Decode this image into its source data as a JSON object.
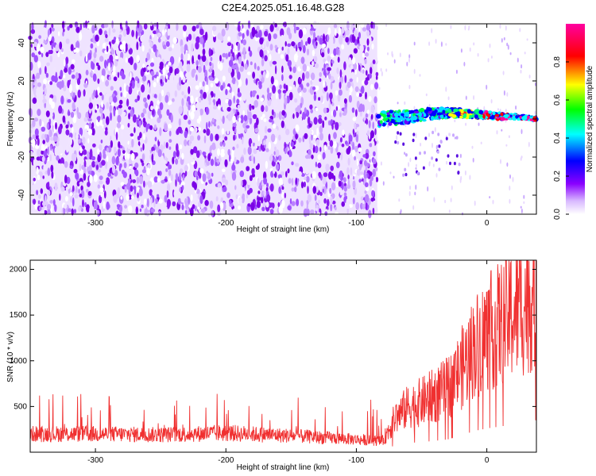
{
  "figure_title": "C2E4.2025.051.16.48.G28",
  "chart_data": [
    {
      "type": "heatmap",
      "title": "C2E4.2025.051.16.48.G28",
      "xlabel": "Height of straight line (km)",
      "ylabel": "Frequency (Hz)",
      "xlim": [
        -350,
        38
      ],
      "ylim": [
        -50,
        50
      ],
      "x_ticks": [
        -300,
        -200,
        -100,
        0
      ],
      "y_ticks": [
        -40,
        -20,
        0,
        20,
        40
      ],
      "grid": false,
      "noise_region_x": [
        -350,
        -84
      ],
      "signal_region_x": [
        -84,
        38
      ],
      "signal_ridge": [
        {
          "x": -84,
          "y": 0
        },
        {
          "x": -60,
          "y": 1
        },
        {
          "x": -40,
          "y": 3
        },
        {
          "x": -20,
          "y": 3
        },
        {
          "x": 0,
          "y": 2
        },
        {
          "x": 20,
          "y": 1
        },
        {
          "x": 38,
          "y": 0
        }
      ],
      "colorbar": {
        "label": "Normalized spectral amplitude",
        "range": [
          0,
          1
        ],
        "ticks": [
          0.0,
          0.2,
          0.4,
          0.6,
          0.8
        ],
        "colors": [
          "#ffffff",
          "#8a00ff",
          "#0000ff",
          "#00ffff",
          "#00ff00",
          "#ffff00",
          "#ff0000",
          "#ff00a0"
        ]
      }
    },
    {
      "type": "line",
      "xlabel": "Height of straight line (km)",
      "ylabel": "SNR (10 * v/v)",
      "xlim": [
        -350,
        38
      ],
      "ylim": [
        0,
        2100
      ],
      "x_ticks": [
        -300,
        -200,
        -100,
        0
      ],
      "y_ticks": [
        500,
        1000,
        1500,
        2000
      ],
      "grid": false,
      "color": "#f03030",
      "series": [
        {
          "x": [
            -350,
            -300,
            -250,
            -200,
            -150,
            -100,
            -80,
            -70,
            -60,
            -50,
            -40,
            -30,
            -20,
            -10,
            0,
            10,
            20,
            30,
            38
          ],
          "y": [
            200,
            200,
            190,
            210,
            180,
            140,
            120,
            380,
            500,
            550,
            620,
            700,
            900,
            1150,
            1300,
            1400,
            1520,
            1650,
            1750
          ]
        }
      ]
    }
  ]
}
